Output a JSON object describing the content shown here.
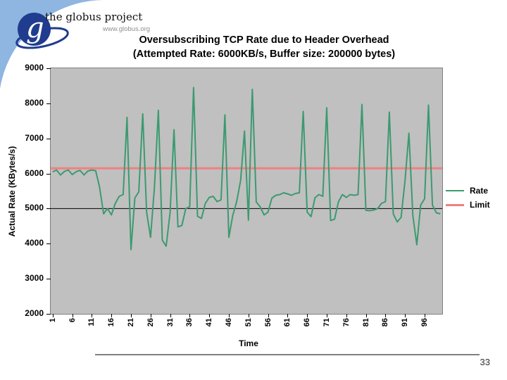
{
  "logo": {
    "brand": "the globus project",
    "url": "www.globus.org",
    "monogram": "g"
  },
  "title": {
    "line1": "Oversubscribing TCP Rate due to Header Overhead",
    "line2": "(Attempted Rate: 6000KB/s, Buffer size: 200000 bytes)"
  },
  "page_number": "33",
  "colors": {
    "rate_line": "#3C9A70",
    "limit_line": "#F08080",
    "plot_bg": "#C0C0C0",
    "plot_border": "#808080",
    "gridline": "#000000",
    "corner_blue": "#8FB5E1",
    "logo_navy": "#203C8E",
    "divider": "#808080"
  },
  "chart_data": {
    "type": "line",
    "title": "Oversubscribing TCP Rate due to Header Overhead (Attempted Rate: 6000KB/s, Buffer size: 200000 bytes)",
    "xlabel": "Time",
    "ylabel": "Actual Rate (KBytes/s)",
    "ylim": [
      2000,
      9000
    ],
    "yticks": [
      9000,
      8000,
      7000,
      6000,
      5000,
      4000,
      3000,
      2000
    ],
    "xticks": [
      1,
      6,
      11,
      16,
      21,
      26,
      31,
      36,
      41,
      46,
      51,
      56,
      61,
      66,
      71,
      76,
      81,
      86,
      91,
      96
    ],
    "n_points": 100,
    "gridline_y": 5000,
    "grid": "single horizontal line at 5000",
    "legend_position": "right",
    "series": [
      {
        "name": "Rate",
        "color": "#3C9A70",
        "values": [
          6050,
          6100,
          5960,
          6060,
          6100,
          5970,
          6050,
          6090,
          5960,
          6070,
          6100,
          6080,
          5600,
          4850,
          5000,
          4820,
          5150,
          5350,
          5400,
          7600,
          3830,
          5300,
          5480,
          7700,
          4900,
          4180,
          5600,
          7800,
          4100,
          3930,
          4900,
          7250,
          4480,
          4520,
          5000,
          5050,
          8450,
          4780,
          4720,
          5150,
          5320,
          5350,
          5200,
          5250,
          7670,
          4180,
          4800,
          5200,
          5800,
          7210,
          4670,
          8400,
          5190,
          5050,
          4820,
          4900,
          5300,
          5380,
          5400,
          5450,
          5420,
          5380,
          5430,
          5450,
          7770,
          4900,
          4770,
          5310,
          5400,
          5350,
          7870,
          4660,
          4700,
          5200,
          5400,
          5320,
          5400,
          5380,
          5400,
          7970,
          4950,
          4940,
          4960,
          5000,
          5150,
          5200,
          7750,
          4850,
          4620,
          4750,
          5800,
          7150,
          4800,
          3970,
          5100,
          5280,
          7950,
          5100,
          4880,
          4850
        ]
      },
      {
        "name": "Limit",
        "color": "#F08080",
        "constant": 6150
      }
    ]
  }
}
